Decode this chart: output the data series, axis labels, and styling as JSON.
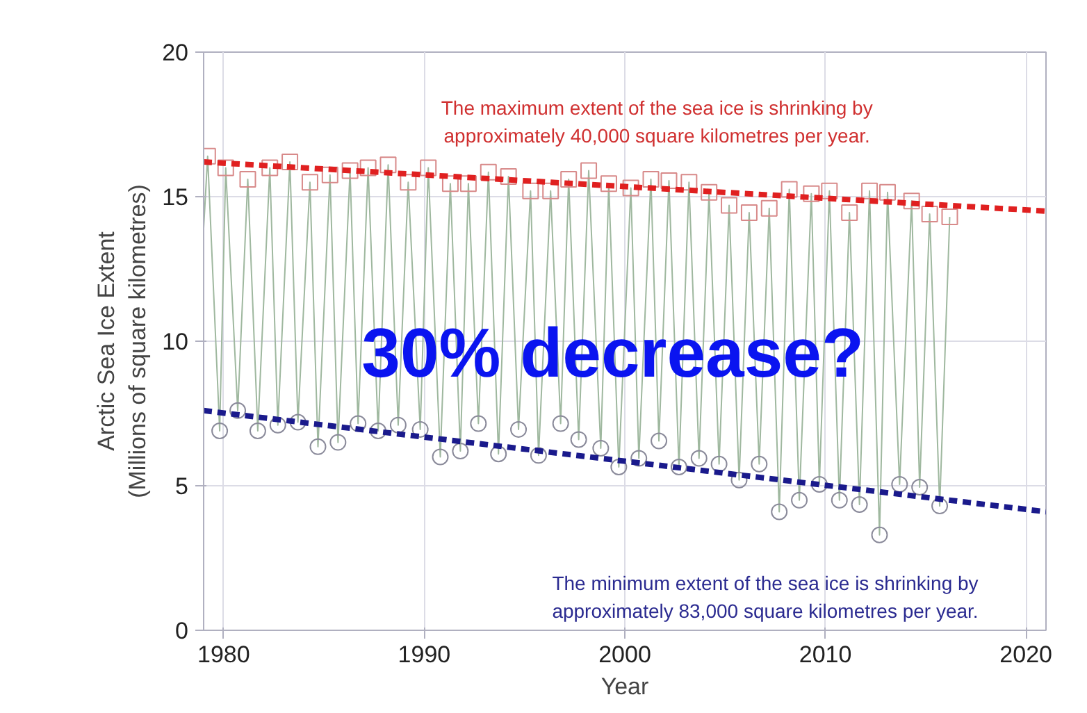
{
  "chart_data": {
    "type": "line",
    "xlabel": "Year",
    "ylabel": "Arctic Sea Ice Extent\n(Millions of square kilometres)",
    "xlim": [
      1979,
      2021
    ],
    "ylim": [
      0,
      20
    ],
    "xticks": [
      1980,
      1990,
      2000,
      2010,
      2020
    ],
    "yticks": [
      0,
      5,
      10,
      15,
      20
    ],
    "grid": true,
    "series": [
      {
        "color": "#9fb89f",
        "marker": "none",
        "line_style": "solid",
        "x": [
          1979.0,
          1979.2,
          1979.8,
          1980.1,
          1980.7,
          1981.2,
          1981.7,
          1982.3,
          1982.7,
          1983.3,
          1983.7,
          1984.3,
          1984.7,
          1985.3,
          1985.7,
          1986.3,
          1986.7,
          1987.2,
          1987.7,
          1988.2,
          1988.7,
          1989.2,
          1989.8,
          1990.2,
          1990.8,
          1991.3,
          1991.8,
          1992.2,
          1992.7,
          1993.2,
          1993.7,
          1994.2,
          1994.7,
          1995.3,
          1995.7,
          1996.3,
          1996.8,
          1997.2,
          1997.7,
          1998.2,
          1998.8,
          1999.2,
          1999.7,
          2000.3,
          2000.7,
          2001.3,
          2001.7,
          2002.2,
          2002.7,
          2003.2,
          2003.7,
          2004.2,
          2004.7,
          2005.2,
          2005.7,
          2006.2,
          2006.7,
          2007.2,
          2007.7,
          2008.2,
          2008.7,
          2009.3,
          2009.7,
          2010.2,
          2010.7,
          2011.2,
          2011.7,
          2012.2,
          2012.7,
          2013.1,
          2013.7,
          2014.3,
          2014.7,
          2015.2,
          2015.7,
          2016.2
        ],
        "values": [
          13.9,
          16.4,
          6.9,
          16.0,
          7.6,
          15.6,
          6.9,
          16.0,
          7.1,
          16.2,
          7.2,
          15.5,
          6.35,
          15.75,
          6.5,
          15.9,
          7.15,
          16.0,
          6.9,
          16.1,
          7.1,
          15.5,
          6.95,
          16.0,
          6.0,
          15.45,
          6.2,
          15.45,
          7.15,
          15.85,
          6.1,
          15.7,
          6.95,
          15.2,
          6.05,
          15.2,
          7.15,
          15.6,
          6.6,
          15.9,
          6.3,
          15.45,
          5.65,
          15.3,
          5.95,
          15.6,
          6.55,
          15.55,
          5.65,
          15.5,
          5.95,
          15.15,
          5.75,
          14.7,
          5.2,
          14.45,
          5.75,
          14.6,
          4.1,
          15.25,
          4.5,
          15.1,
          5.05,
          15.2,
          4.5,
          14.45,
          4.35,
          15.2,
          3.3,
          15.15,
          5.05,
          14.85,
          4.95,
          14.4,
          4.3,
          14.3
        ]
      },
      {
        "type": "scatter",
        "color": "#d88a8a",
        "marker": "square",
        "x": [
          1979.2,
          1980.1,
          1981.2,
          1982.3,
          1983.3,
          1984.3,
          1985.3,
          1986.3,
          1987.2,
          1988.2,
          1989.2,
          1990.2,
          1991.3,
          1992.2,
          1993.2,
          1994.2,
          1995.3,
          1996.3,
          1997.2,
          1998.2,
          1999.2,
          2000.3,
          2001.3,
          2002.2,
          2003.2,
          2004.2,
          2005.2,
          2006.2,
          2007.2,
          2008.2,
          2009.3,
          2010.2,
          2011.2,
          2012.2,
          2013.1,
          2014.3,
          2015.2,
          2016.2
        ],
        "values": [
          16.4,
          16.0,
          15.6,
          16.0,
          16.2,
          15.5,
          15.75,
          15.9,
          16.0,
          16.1,
          15.5,
          16.0,
          15.45,
          15.45,
          15.85,
          15.7,
          15.2,
          15.2,
          15.6,
          15.9,
          15.45,
          15.3,
          15.6,
          15.55,
          15.5,
          15.15,
          14.7,
          14.45,
          14.6,
          15.25,
          15.1,
          15.2,
          14.45,
          15.2,
          15.15,
          14.85,
          14.4,
          14.3
        ]
      },
      {
        "type": "scatter",
        "color": "#8a8a9a",
        "marker": "circle",
        "x": [
          1979.8,
          1980.7,
          1981.7,
          1982.7,
          1983.7,
          1984.7,
          1985.7,
          1986.7,
          1987.7,
          1988.7,
          1989.8,
          1990.8,
          1991.8,
          1992.7,
          1993.7,
          1994.7,
          1995.7,
          1996.8,
          1997.7,
          1998.8,
          1999.7,
          2000.7,
          2001.7,
          2002.7,
          2003.7,
          2004.7,
          2005.7,
          2006.7,
          2007.7,
          2008.7,
          2009.7,
          2010.7,
          2011.7,
          2012.7,
          2013.7,
          2014.7,
          2015.7
        ],
        "values": [
          6.9,
          7.6,
          6.9,
          7.1,
          7.2,
          6.35,
          6.5,
          7.15,
          6.9,
          7.1,
          6.95,
          6.0,
          6.2,
          7.15,
          6.1,
          6.95,
          6.05,
          7.15,
          6.6,
          6.3,
          5.65,
          5.95,
          6.55,
          5.65,
          5.95,
          5.75,
          5.2,
          5.75,
          4.1,
          4.5,
          5.05,
          4.5,
          4.35,
          3.3,
          5.05,
          4.95,
          4.3
        ]
      },
      {
        "color": "#e02020",
        "marker": "none",
        "line_style": "dashed",
        "x": [
          1979,
          2021
        ],
        "values": [
          16.2,
          14.5
        ]
      },
      {
        "color": "#1a1a8c",
        "marker": "none",
        "line_style": "dashed",
        "x": [
          1979,
          2021
        ],
        "values": [
          7.6,
          4.1
        ]
      }
    ],
    "annotations": [
      "The maximum extent of the sea ice is shrinking by\napproximately 40,000 square kilometres per year.",
      "30% decrease?",
      "The minimum extent of the sea ice is shrinking by\napproximately 83,000 square kilometres per year."
    ]
  }
}
